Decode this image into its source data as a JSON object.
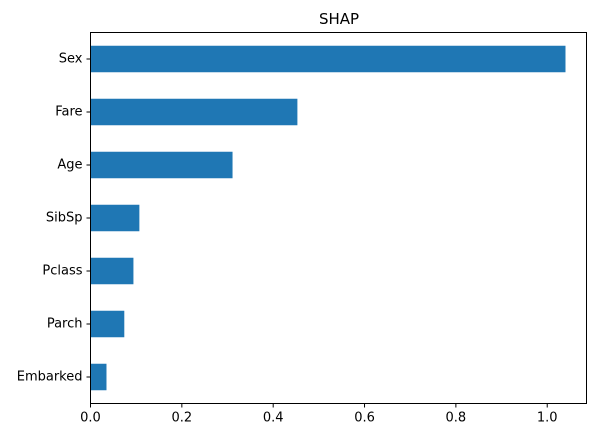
{
  "chart_data": {
    "type": "bar",
    "orientation": "horizontal",
    "title": "SHAP",
    "xlabel": "",
    "ylabel": "",
    "categories": [
      "Sex",
      "Fare",
      "Age",
      "SibSp",
      "Pclass",
      "Parch",
      "Embarked"
    ],
    "values": [
      1.04,
      0.453,
      0.311,
      0.107,
      0.094,
      0.074,
      0.035
    ],
    "xlim": [
      0,
      1.086
    ],
    "xticks": [
      0.0,
      0.2,
      0.4,
      0.6,
      0.8,
      1.0
    ],
    "xtick_labels": [
      "0.0",
      "0.2",
      "0.4",
      "0.6",
      "0.8",
      "1.0"
    ],
    "grid": false,
    "legend": "none",
    "bar_color": "#1f77b4"
  }
}
